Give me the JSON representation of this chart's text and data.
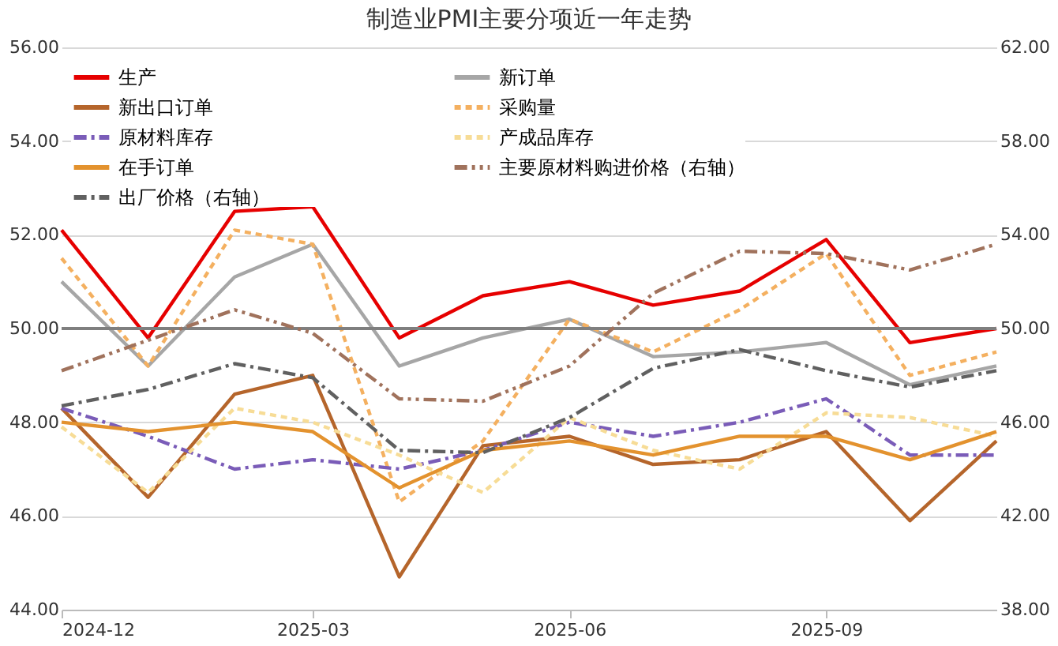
{
  "chart_data": {
    "type": "line",
    "title": "制造业PMI主要分项近一年走势",
    "x": [
      "2024-12",
      "2025-01",
      "2025-02",
      "2025-03",
      "2025-04",
      "2025-05",
      "2025-06",
      "2025-07",
      "2025-08",
      "2025-09",
      "2025-10",
      "2025-11"
    ],
    "xlim": [
      "2024-12",
      "2025-11"
    ],
    "xticks": [
      {
        "value": "2024-12",
        "label": "2024-12"
      },
      {
        "value": "2025-03",
        "label": "2025-03"
      },
      {
        "value": "2025-06",
        "label": "2025-06"
      },
      {
        "value": "2025-09",
        "label": "2025-09"
      }
    ],
    "ylim": [
      44,
      56
    ],
    "yticks": [
      {
        "value": 44,
        "label": "44.00"
      },
      {
        "value": 46,
        "label": "46.00"
      },
      {
        "value": 48,
        "label": "48.00"
      },
      {
        "value": 50,
        "label": "50.00"
      },
      {
        "value": 52,
        "label": "52.00"
      },
      {
        "value": 54,
        "label": "54.00"
      },
      {
        "value": 56,
        "label": "56.00"
      }
    ],
    "y2lim": [
      38,
      62
    ],
    "y2ticks": [
      {
        "value": 38,
        "label": "38.00"
      },
      {
        "value": 42,
        "label": "42.00"
      },
      {
        "value": 46,
        "label": "46.00"
      },
      {
        "value": 50,
        "label": "50.00"
      },
      {
        "value": 54,
        "label": "54.00"
      },
      {
        "value": 58,
        "label": "58.00"
      },
      {
        "value": 62,
        "label": "62.00"
      }
    ],
    "grid": "y",
    "legend": "top left",
    "ref_lines": [
      {
        "axis": "y",
        "value": 50,
        "color": "#7f7f7f"
      }
    ],
    "series": [
      {
        "name": "生产",
        "color": "#e60000",
        "line_style": "solid",
        "values": [
          52.1,
          49.8,
          52.5,
          52.6,
          49.8,
          50.7,
          51.0,
          50.5,
          50.8,
          51.9,
          49.7,
          50.0
        ]
      },
      {
        "name": "新订单",
        "color": "#a6a6a6",
        "line_style": "solid",
        "values": [
          51.0,
          49.2,
          51.1,
          51.8,
          49.2,
          49.8,
          50.2,
          49.4,
          49.5,
          49.7,
          48.8,
          49.2
        ]
      },
      {
        "name": "新出口订单",
        "color": "#b5652b",
        "line_style": "solid",
        "values": [
          48.3,
          46.4,
          48.6,
          49.0,
          44.7,
          47.5,
          47.7,
          47.1,
          47.2,
          47.8,
          45.9,
          47.6
        ]
      },
      {
        "name": "采购量",
        "color": "#f4b060",
        "line_style": "dashed",
        "values": [
          51.5,
          49.2,
          52.1,
          51.8,
          46.3,
          47.6,
          50.2,
          49.5,
          50.4,
          51.6,
          49.0,
          49.5
        ]
      },
      {
        "name": "原材料库存",
        "color": "#7a5cb8",
        "line_style": "dashdot",
        "values": [
          48.3,
          47.7,
          47.0,
          47.2,
          47.0,
          47.4,
          48.0,
          47.7,
          48.0,
          48.5,
          47.3,
          47.3
        ]
      },
      {
        "name": "产成品库存",
        "color": "#f7dc96",
        "line_style": "dashed",
        "values": [
          47.9,
          46.5,
          48.3,
          48.0,
          47.3,
          46.5,
          48.1,
          47.4,
          47.0,
          48.2,
          48.1,
          47.7
        ]
      },
      {
        "name": "在手订单",
        "color": "#e3922e",
        "line_style": "solid",
        "values": [
          48.0,
          47.8,
          48.0,
          47.8,
          46.6,
          47.4,
          47.6,
          47.3,
          47.7,
          47.7,
          47.2,
          47.8
        ]
      },
      {
        "name": "主要原材料购进价格（右轴）",
        "color": "#a0725c",
        "line_style": "dashdotdot",
        "axis": "y2",
        "values": [
          48.2,
          49.5,
          50.8,
          49.8,
          47.0,
          46.9,
          48.4,
          51.5,
          53.3,
          53.2,
          52.5,
          53.6
        ]
      },
      {
        "name": "出厂价格（右轴）",
        "color": "#606060",
        "line_style": "dashdot",
        "axis": "y2",
        "values": [
          46.7,
          47.4,
          48.5,
          47.9,
          44.8,
          44.7,
          46.2,
          48.3,
          49.1,
          48.2,
          47.5,
          48.2
        ]
      }
    ]
  }
}
